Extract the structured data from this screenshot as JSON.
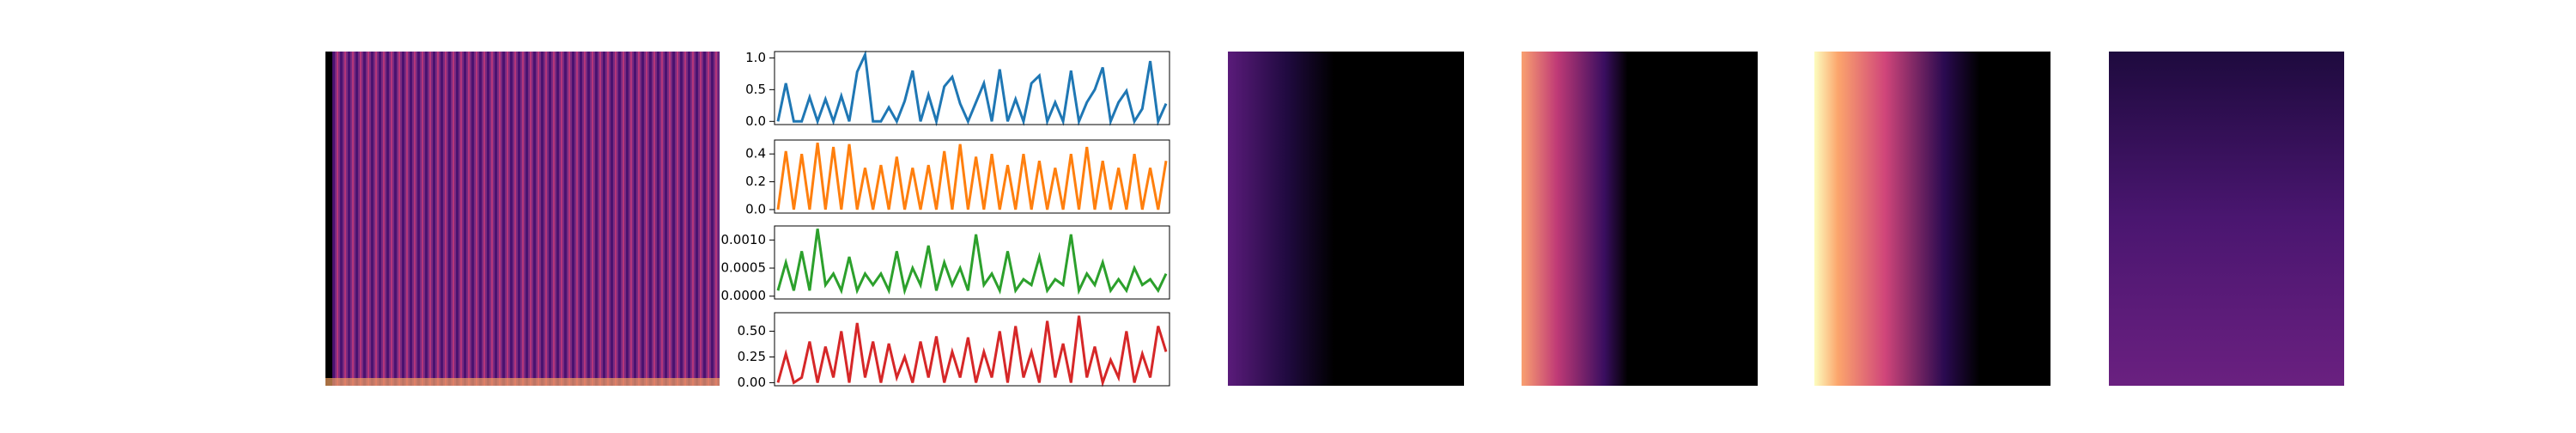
{
  "chart_data": [
    {
      "type": "line",
      "color": "#1f77b4",
      "ylim": [
        -0.05,
        1.1
      ],
      "yticks": [
        {
          "value": 0,
          "label": "0.0"
        },
        {
          "value": 0.5,
          "label": "0.5"
        },
        {
          "value": 1,
          "label": "1.0"
        }
      ],
      "values": [
        0,
        0.6,
        0,
        0,
        0.38,
        0,
        0.35,
        0,
        0.4,
        0,
        0.78,
        1.05,
        0,
        0,
        0.22,
        0,
        0.32,
        0.8,
        0,
        0.42,
        0,
        0.55,
        0.7,
        0.28,
        0,
        0.3,
        0.6,
        0,
        0.82,
        0,
        0.35,
        0,
        0.6,
        0.72,
        0,
        0.3,
        0,
        0.8,
        0,
        0.3,
        0.5,
        0.85,
        0,
        0.3,
        0.48,
        0,
        0.2,
        0.95,
        0,
        0.28
      ]
    },
    {
      "type": "line",
      "color": "#ff7f0e",
      "ylim": [
        -0.025,
        0.5
      ],
      "yticks": [
        {
          "value": 0,
          "label": "0.0"
        },
        {
          "value": 0.2,
          "label": "0.2"
        },
        {
          "value": 0.4,
          "label": "0.4"
        }
      ],
      "values": [
        0,
        0.42,
        0,
        0.4,
        0,
        0.48,
        0,
        0.45,
        0,
        0.47,
        0,
        0.3,
        0,
        0.32,
        0,
        0.38,
        0,
        0.3,
        0,
        0.32,
        0,
        0.42,
        0,
        0.47,
        0,
        0.38,
        0,
        0.4,
        0,
        0.32,
        0,
        0.4,
        0,
        0.35,
        0,
        0.3,
        0,
        0.4,
        0,
        0.45,
        0,
        0.35,
        0,
        0.3,
        0,
        0.4,
        0,
        0.3,
        0,
        0.35
      ]
    },
    {
      "type": "line",
      "color": "#2ca02c",
      "ylim": [
        -5e-05,
        0.00125
      ],
      "yticks": [
        {
          "value": 0,
          "label": "0.0000"
        },
        {
          "value": 0.0005,
          "label": "0.0005"
        },
        {
          "value": 0.001,
          "label": "0.0010"
        }
      ],
      "values": [
        0.0001,
        0.0006,
        0.0001,
        0.0008,
        0.0001,
        0.0012,
        0.0002,
        0.0004,
        0.0001,
        0.0007,
        0.0001,
        0.0004,
        0.0002,
        0.0004,
        0.0001,
        0.0008,
        0.0001,
        0.0005,
        0.0002,
        0.0009,
        0.0001,
        0.0006,
        0.0002,
        0.0005,
        0.0001,
        0.0011,
        0.0002,
        0.0004,
        0.0001,
        0.0008,
        0.0001,
        0.0003,
        0.0002,
        0.0007,
        0.0001,
        0.0003,
        0.0002,
        0.0011,
        0.0001,
        0.0004,
        0.0002,
        0.0006,
        0.0001,
        0.0003,
        0.0001,
        0.0005,
        0.0002,
        0.0003,
        0.0001,
        0.0004
      ]
    },
    {
      "type": "line",
      "color": "#d62728",
      "ylim": [
        -0.03,
        0.68
      ],
      "yticks": [
        {
          "value": 0,
          "label": "0.00"
        },
        {
          "value": 0.25,
          "label": "0.25"
        },
        {
          "value": 0.5,
          "label": "0.50"
        }
      ],
      "values": [
        0,
        0.28,
        0,
        0.05,
        0.4,
        0,
        0.35,
        0.05,
        0.5,
        0,
        0.58,
        0.05,
        0.4,
        0,
        0.38,
        0.05,
        0.25,
        0,
        0.4,
        0.05,
        0.45,
        0,
        0.3,
        0.05,
        0.44,
        0,
        0.3,
        0.05,
        0.5,
        0,
        0.55,
        0.05,
        0.3,
        0,
        0.6,
        0.05,
        0.38,
        0,
        0.65,
        0.05,
        0.35,
        0,
        0.22,
        0.05,
        0.5,
        0,
        0.28,
        0.05,
        0.55,
        0.3
      ]
    }
  ]
}
